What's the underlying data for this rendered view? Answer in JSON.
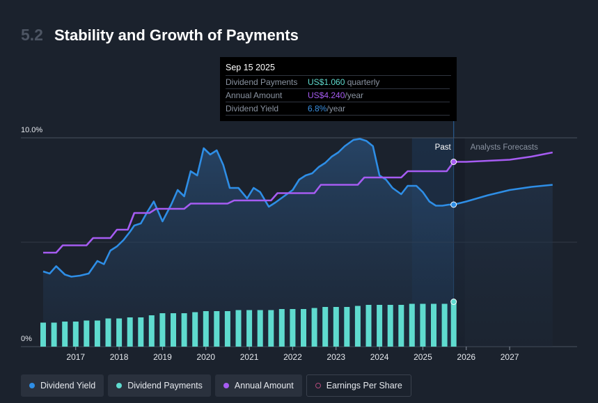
{
  "header": {
    "section_number": "5.2",
    "title": "Stability and Growth of Payments"
  },
  "tooltip": {
    "date": "Sep 15 2025",
    "rows": [
      {
        "label": "Dividend Payments",
        "value": "US$1.060",
        "unit": " quarterly",
        "color": "#5fdbcf"
      },
      {
        "label": "Annual Amount",
        "value": "US$4.240",
        "unit": "/year",
        "color": "#a65cf2"
      },
      {
        "label": "Dividend Yield",
        "value": "6.8%",
        "unit": "/year",
        "color": "#3a8fe0"
      }
    ]
  },
  "regions": {
    "past": "Past",
    "forecast": "Analysts Forecasts"
  },
  "legend": [
    {
      "label": "Dividend Yield",
      "color": "#2e8ee6",
      "style": "filled"
    },
    {
      "label": "Dividend Payments",
      "color": "#5fdbcf",
      "style": "filled"
    },
    {
      "label": "Annual Amount",
      "color": "#a65cf2",
      "style": "filled"
    },
    {
      "label": "Earnings Per Share",
      "color": "#b14a7a",
      "style": "outline"
    }
  ],
  "colors": {
    "background": "#1b222d",
    "yield": "#2e8ee6",
    "payments": "#5fdbcf",
    "annual": "#a65cf2"
  },
  "chart_data": {
    "type": "line",
    "y_axis": {
      "ticks": [
        "0%",
        "10.0%"
      ],
      "ylim": [
        0,
        10
      ]
    },
    "x_axis": {
      "ticks": [
        "2017",
        "2018",
        "2019",
        "2020",
        "2021",
        "2022",
        "2023",
        "2024",
        "2025",
        "2026",
        "2027"
      ],
      "xlim": [
        2016.25,
        2028.25
      ]
    },
    "marker_date": 2025.71,
    "forecast_end": 2027.99,
    "series": [
      {
        "name": "Dividend Yield",
        "points": [
          [
            2016.25,
            3.6
          ],
          [
            2016.4,
            3.5
          ],
          [
            2016.55,
            3.85
          ],
          [
            2016.75,
            3.45
          ],
          [
            2016.9,
            3.35
          ],
          [
            2017.1,
            3.4
          ],
          [
            2017.3,
            3.5
          ],
          [
            2017.5,
            4.1
          ],
          [
            2017.65,
            3.95
          ],
          [
            2017.8,
            4.6
          ],
          [
            2017.95,
            4.8
          ],
          [
            2018.1,
            5.1
          ],
          [
            2018.25,
            5.5
          ],
          [
            2018.35,
            5.8
          ],
          [
            2018.5,
            5.9
          ],
          [
            2018.65,
            6.45
          ],
          [
            2018.8,
            6.95
          ],
          [
            2019.0,
            6.0
          ],
          [
            2019.2,
            6.8
          ],
          [
            2019.35,
            7.5
          ],
          [
            2019.5,
            7.2
          ],
          [
            2019.65,
            8.4
          ],
          [
            2019.8,
            8.2
          ],
          [
            2019.95,
            9.5
          ],
          [
            2020.1,
            9.2
          ],
          [
            2020.25,
            9.4
          ],
          [
            2020.4,
            8.7
          ],
          [
            2020.55,
            7.6
          ],
          [
            2020.75,
            7.6
          ],
          [
            2020.95,
            7.1
          ],
          [
            2021.1,
            7.6
          ],
          [
            2021.25,
            7.4
          ],
          [
            2021.45,
            6.7
          ],
          [
            2021.6,
            6.9
          ],
          [
            2021.8,
            7.2
          ],
          [
            2022.0,
            7.5
          ],
          [
            2022.15,
            8.0
          ],
          [
            2022.3,
            8.2
          ],
          [
            2022.45,
            8.3
          ],
          [
            2022.6,
            8.6
          ],
          [
            2022.75,
            8.8
          ],
          [
            2022.9,
            9.1
          ],
          [
            2023.05,
            9.3
          ],
          [
            2023.2,
            9.6
          ],
          [
            2023.4,
            9.9
          ],
          [
            2023.55,
            9.95
          ],
          [
            2023.7,
            9.85
          ],
          [
            2023.85,
            9.6
          ],
          [
            2024.0,
            8.2
          ],
          [
            2024.15,
            8.0
          ],
          [
            2024.3,
            7.6
          ],
          [
            2024.5,
            7.3
          ],
          [
            2024.65,
            7.7
          ],
          [
            2024.85,
            7.7
          ],
          [
            2025.0,
            7.4
          ],
          [
            2025.15,
            6.95
          ],
          [
            2025.3,
            6.75
          ],
          [
            2025.45,
            6.75
          ],
          [
            2025.6,
            6.8
          ],
          [
            2025.71,
            6.8
          ],
          [
            2026.0,
            6.95
          ],
          [
            2026.5,
            7.25
          ],
          [
            2027.0,
            7.5
          ],
          [
            2027.5,
            7.65
          ],
          [
            2027.99,
            7.75
          ]
        ]
      },
      {
        "name": "Annual Amount",
        "points": [
          [
            2016.25,
            4.5
          ],
          [
            2016.55,
            4.5
          ],
          [
            2016.7,
            4.85
          ],
          [
            2017.25,
            4.85
          ],
          [
            2017.4,
            5.2
          ],
          [
            2017.8,
            5.2
          ],
          [
            2017.95,
            5.6
          ],
          [
            2018.2,
            5.6
          ],
          [
            2018.35,
            6.4
          ],
          [
            2018.7,
            6.4
          ],
          [
            2018.85,
            6.6
          ],
          [
            2019.5,
            6.6
          ],
          [
            2019.65,
            6.85
          ],
          [
            2020.5,
            6.85
          ],
          [
            2020.65,
            7.0
          ],
          [
            2021.5,
            7.0
          ],
          [
            2021.65,
            7.35
          ],
          [
            2022.5,
            7.35
          ],
          [
            2022.65,
            7.75
          ],
          [
            2023.5,
            7.75
          ],
          [
            2023.65,
            8.1
          ],
          [
            2024.5,
            8.1
          ],
          [
            2024.65,
            8.4
          ],
          [
            2025.55,
            8.4
          ],
          [
            2025.71,
            8.85
          ],
          [
            2026.0,
            8.85
          ],
          [
            2026.5,
            8.9
          ],
          [
            2027.0,
            8.95
          ],
          [
            2027.5,
            9.1
          ],
          [
            2027.99,
            9.3
          ]
        ]
      },
      {
        "name": "Dividend Payments",
        "bars": [
          [
            2016.25,
            1.15
          ],
          [
            2016.5,
            1.15
          ],
          [
            2016.75,
            1.2
          ],
          [
            2017.0,
            1.2
          ],
          [
            2017.25,
            1.25
          ],
          [
            2017.5,
            1.25
          ],
          [
            2017.75,
            1.35
          ],
          [
            2018.0,
            1.35
          ],
          [
            2018.25,
            1.4
          ],
          [
            2018.5,
            1.4
          ],
          [
            2018.75,
            1.5
          ],
          [
            2019.0,
            1.6
          ],
          [
            2019.25,
            1.6
          ],
          [
            2019.5,
            1.6
          ],
          [
            2019.75,
            1.65
          ],
          [
            2020.0,
            1.7
          ],
          [
            2020.25,
            1.7
          ],
          [
            2020.5,
            1.7
          ],
          [
            2020.75,
            1.75
          ],
          [
            2021.0,
            1.75
          ],
          [
            2021.25,
            1.75
          ],
          [
            2021.5,
            1.75
          ],
          [
            2021.75,
            1.8
          ],
          [
            2022.0,
            1.8
          ],
          [
            2022.25,
            1.8
          ],
          [
            2022.5,
            1.85
          ],
          [
            2022.75,
            1.9
          ],
          [
            2023.0,
            1.9
          ],
          [
            2023.25,
            1.9
          ],
          [
            2023.5,
            1.95
          ],
          [
            2023.75,
            2.0
          ],
          [
            2024.0,
            2.0
          ],
          [
            2024.25,
            2.0
          ],
          [
            2024.5,
            2.0
          ],
          [
            2024.75,
            2.05
          ],
          [
            2025.0,
            2.05
          ],
          [
            2025.25,
            2.05
          ],
          [
            2025.5,
            2.05
          ],
          [
            2025.71,
            2.1
          ]
        ],
        "marker_value": 2.15
      }
    ]
  }
}
